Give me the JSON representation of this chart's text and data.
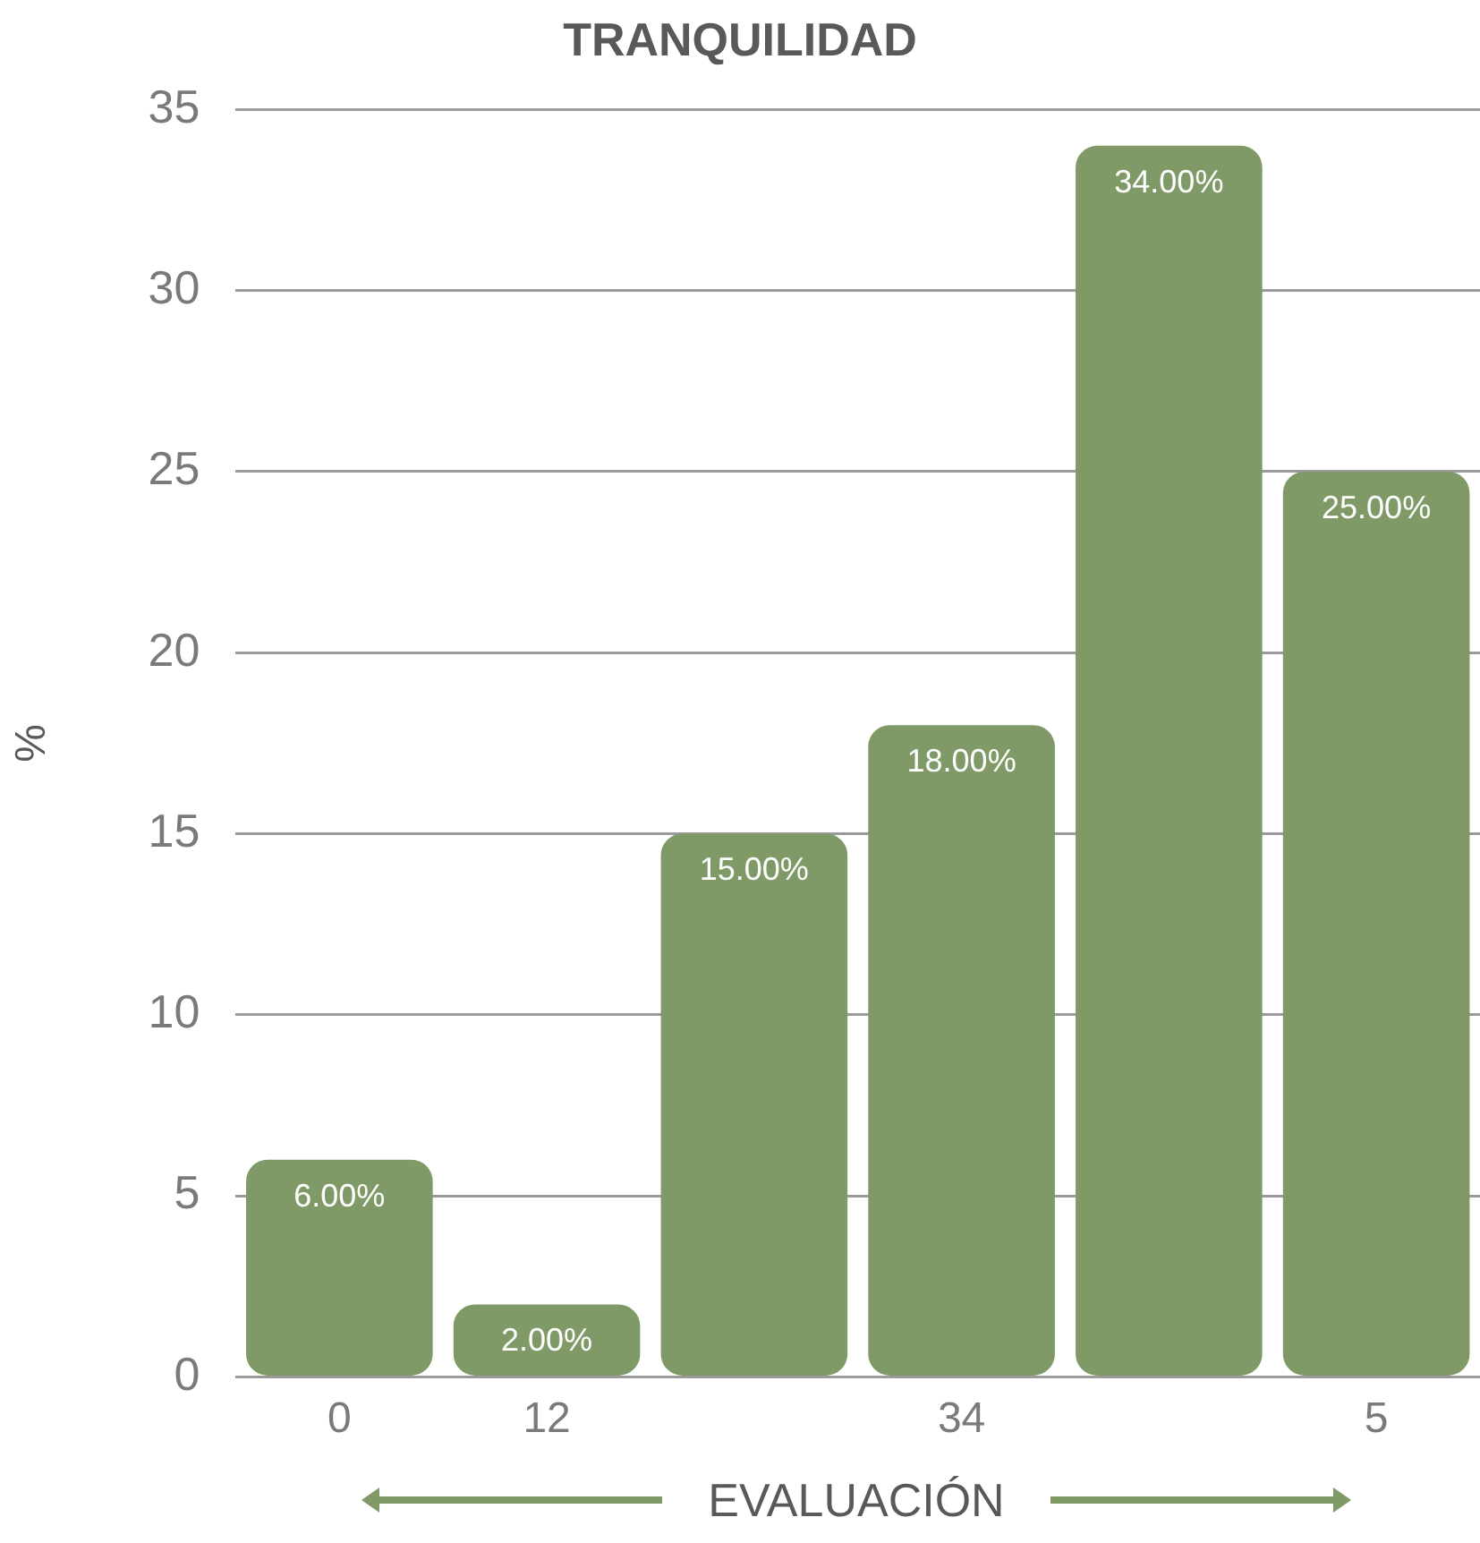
{
  "chart_data": {
    "type": "bar",
    "title": "TRANQUILIDAD",
    "xlabel": "EVALUACIÓN",
    "ylabel": "%",
    "categories": [
      "0",
      "12",
      null,
      "34",
      null,
      "5"
    ],
    "values": [
      6,
      2,
      15,
      18,
      34,
      25
    ],
    "value_labels": [
      "6.00%",
      "2.00%",
      "15.00%",
      "18.00%",
      "34.00%",
      "25.00%"
    ],
    "color": "#7f9a66",
    "ylim": [
      0,
      35
    ],
    "yticks": [
      0,
      5,
      10,
      15,
      20,
      25,
      30,
      35
    ],
    "grid": "y",
    "legend": false
  }
}
